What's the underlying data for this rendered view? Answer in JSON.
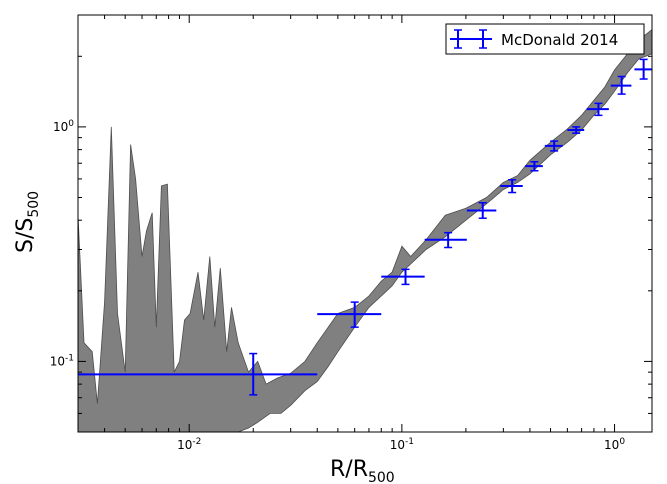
{
  "chart_data": {
    "type": "scatter",
    "xscale": "log",
    "yscale": "log",
    "xlim": [
      0.003,
      1.5
    ],
    "ylim": [
      0.05,
      3.0
    ],
    "grid": false,
    "legend_position": "top-right",
    "xlabel": {
      "main": "R/R",
      "sub": "500"
    },
    "ylabel": {
      "main": "S/S",
      "sub": "500"
    },
    "xticks": [
      {
        "value": 0.01,
        "base": "10",
        "exp": "-2"
      },
      {
        "value": 0.1,
        "base": "10",
        "exp": "-1"
      },
      {
        "value": 1,
        "base": "10",
        "exp": "0"
      }
    ],
    "yticks": [
      {
        "value": 0.1,
        "base": "10",
        "exp": "-1"
      },
      {
        "value": 1,
        "base": "10",
        "exp": "0"
      }
    ],
    "band": {
      "color": "#808080",
      "upper": [
        [
          0.003,
          0.42
        ],
        [
          0.0032,
          0.12
        ],
        [
          0.0035,
          0.11
        ],
        [
          0.0037,
          0.066
        ],
        [
          0.004,
          0.18
        ],
        [
          0.0043,
          1.0
        ],
        [
          0.0046,
          0.16
        ],
        [
          0.005,
          0.09
        ],
        [
          0.0053,
          0.84
        ],
        [
          0.0056,
          0.6
        ],
        [
          0.006,
          0.28
        ],
        [
          0.0063,
          0.36
        ],
        [
          0.0067,
          0.43
        ],
        [
          0.007,
          0.14
        ],
        [
          0.0074,
          0.56
        ],
        [
          0.0079,
          0.57
        ],
        [
          0.0085,
          0.09
        ],
        [
          0.009,
          0.1
        ],
        [
          0.0095,
          0.15
        ],
        [
          0.0101,
          0.16
        ],
        [
          0.011,
          0.24
        ],
        [
          0.0117,
          0.15
        ],
        [
          0.0125,
          0.28
        ],
        [
          0.0132,
          0.14
        ],
        [
          0.014,
          0.25
        ],
        [
          0.015,
          0.11
        ],
        [
          0.0158,
          0.17
        ],
        [
          0.017,
          0.12
        ],
        [
          0.019,
          0.09
        ],
        [
          0.021,
          0.1
        ],
        [
          0.023,
          0.08
        ],
        [
          0.026,
          0.085
        ],
        [
          0.03,
          0.089
        ],
        [
          0.035,
          0.1
        ],
        [
          0.04,
          0.12
        ],
        [
          0.05,
          0.16
        ],
        [
          0.06,
          0.17
        ],
        [
          0.07,
          0.19
        ],
        [
          0.08,
          0.22
        ],
        [
          0.09,
          0.24
        ],
        [
          0.1,
          0.31
        ],
        [
          0.11,
          0.28
        ],
        [
          0.13,
          0.33
        ],
        [
          0.16,
          0.42
        ],
        [
          0.2,
          0.45
        ],
        [
          0.25,
          0.5
        ],
        [
          0.3,
          0.58
        ],
        [
          0.35,
          0.62
        ],
        [
          0.4,
          0.72
        ],
        [
          0.5,
          0.86
        ],
        [
          0.6,
          0.98
        ],
        [
          0.7,
          1.12
        ],
        [
          0.8,
          1.3
        ],
        [
          0.9,
          1.48
        ],
        [
          1.0,
          1.75
        ],
        [
          1.15,
          2.05
        ],
        [
          1.3,
          2.35
        ],
        [
          1.5,
          2.6
        ]
      ],
      "lower": [
        [
          1.5,
          2.05
        ],
        [
          1.3,
          1.95
        ],
        [
          1.15,
          1.7
        ],
        [
          1.0,
          1.42
        ],
        [
          0.9,
          1.25
        ],
        [
          0.8,
          1.12
        ],
        [
          0.7,
          0.97
        ],
        [
          0.6,
          0.86
        ],
        [
          0.5,
          0.76
        ],
        [
          0.4,
          0.63
        ],
        [
          0.35,
          0.58
        ],
        [
          0.3,
          0.54
        ],
        [
          0.25,
          0.47
        ],
        [
          0.2,
          0.4
        ],
        [
          0.16,
          0.34
        ],
        [
          0.13,
          0.3
        ],
        [
          0.1,
          0.24
        ],
        [
          0.09,
          0.21
        ],
        [
          0.08,
          0.19
        ],
        [
          0.07,
          0.17
        ],
        [
          0.06,
          0.14
        ],
        [
          0.05,
          0.11
        ],
        [
          0.045,
          0.095
        ],
        [
          0.04,
          0.082
        ],
        [
          0.035,
          0.075
        ],
        [
          0.03,
          0.065
        ],
        [
          0.027,
          0.06
        ],
        [
          0.024,
          0.06
        ],
        [
          0.021,
          0.055
        ],
        [
          0.019,
          0.052
        ],
        [
          0.017,
          0.05
        ]
      ],
      "floor_from": [
        0.0165,
        0.05
      ],
      "floor_to": [
        0.003,
        0.05
      ]
    },
    "series": [
      {
        "name": "McDonald 2014",
        "color": "#0000ff",
        "points": [
          {
            "x": 0.02,
            "y": 0.088,
            "xerr": [
              0.003,
              0.04
            ],
            "yerr": [
              0.072,
              0.108
            ]
          },
          {
            "x": 0.06,
            "y": 0.159,
            "xerr": [
              0.04,
              0.08
            ],
            "yerr": [
              0.14,
              0.179
            ]
          },
          {
            "x": 0.104,
            "y": 0.23,
            "xerr": [
              0.08,
              0.128
            ],
            "yerr": [
              0.213,
              0.247
            ]
          },
          {
            "x": 0.165,
            "y": 0.33,
            "xerr": [
              0.128,
              0.202
            ],
            "yerr": [
              0.306,
              0.354
            ]
          },
          {
            "x": 0.24,
            "y": 0.44,
            "xerr": [
              0.202,
              0.278
            ],
            "yerr": [
              0.408,
              0.475
            ]
          },
          {
            "x": 0.33,
            "y": 0.56,
            "xerr": [
              0.29,
              0.37
            ],
            "yerr": [
              0.525,
              0.595
            ]
          },
          {
            "x": 0.42,
            "y": 0.68,
            "xerr": [
              0.38,
              0.46
            ],
            "yerr": [
              0.65,
              0.71
            ]
          },
          {
            "x": 0.52,
            "y": 0.83,
            "xerr": [
              0.47,
              0.57
            ],
            "yerr": [
              0.79,
              0.87
            ]
          },
          {
            "x": 0.66,
            "y": 0.97,
            "xerr": [
              0.6,
              0.72
            ],
            "yerr": [
              0.94,
              1.0
            ]
          },
          {
            "x": 0.84,
            "y": 1.19,
            "xerr": [
              0.74,
              0.94
            ],
            "yerr": [
              1.12,
              1.26
            ]
          },
          {
            "x": 1.08,
            "y": 1.5,
            "xerr": [
              0.96,
              1.2
            ],
            "yerr": [
              1.38,
              1.64
            ]
          },
          {
            "x": 1.37,
            "y": 1.76,
            "xerr": [
              1.24,
              1.5
            ],
            "yerr": [
              1.6,
              1.94
            ]
          }
        ]
      }
    ]
  }
}
